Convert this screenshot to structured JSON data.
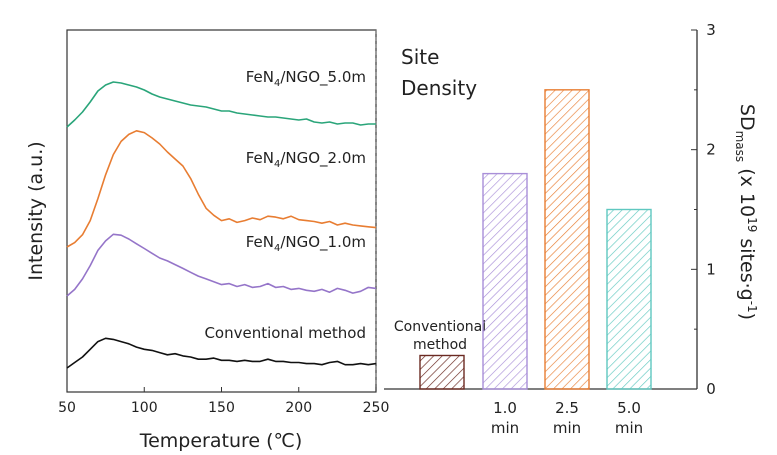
{
  "chart_data": [
    {
      "type": "line",
      "xlabel": "Temperature (℃)",
      "ylabel": "Intensity (a.u.)",
      "xlim": [
        50,
        250
      ],
      "xticks": [
        "50",
        "100",
        "150",
        "200",
        "250"
      ],
      "legend": "labels placed above each curve",
      "series": [
        {
          "name": "FeN4/NGO_5.0m",
          "label_parts": [
            "FeN",
            "4",
            "/NGO_5.0m"
          ],
          "color": "#2aa57a",
          "x": [
            50,
            55,
            60,
            65,
            70,
            75,
            80,
            85,
            90,
            95,
            100,
            105,
            110,
            115,
            120,
            125,
            130,
            135,
            140,
            145,
            150,
            155,
            160,
            165,
            170,
            175,
            180,
            185,
            190,
            195,
            200,
            205,
            210,
            215,
            220,
            225,
            230,
            235,
            240,
            245,
            250
          ],
          "y": [
            0.0,
            0.07,
            0.15,
            0.25,
            0.36,
            0.42,
            0.45,
            0.44,
            0.42,
            0.4,
            0.37,
            0.33,
            0.3,
            0.28,
            0.26,
            0.24,
            0.22,
            0.21,
            0.2,
            0.18,
            0.16,
            0.16,
            0.14,
            0.13,
            0.12,
            0.11,
            0.1,
            0.1,
            0.09,
            0.08,
            0.07,
            0.08,
            0.05,
            0.04,
            0.05,
            0.03,
            0.04,
            0.04,
            0.02,
            0.03,
            0.03
          ]
        },
        {
          "name": "FeN4/NGO_2.0m",
          "label_parts": [
            "FeN",
            "4",
            "/NGO_2.0m"
          ],
          "color": "#e87d32",
          "x": [
            50,
            55,
            60,
            65,
            70,
            75,
            80,
            85,
            90,
            95,
            100,
            105,
            110,
            115,
            120,
            125,
            130,
            135,
            140,
            145,
            150,
            155,
            160,
            165,
            170,
            175,
            180,
            185,
            190,
            195,
            200,
            205,
            210,
            215,
            220,
            225,
            230,
            235,
            240,
            245,
            250
          ],
          "y": [
            0.0,
            0.05,
            0.14,
            0.3,
            0.55,
            0.82,
            1.05,
            1.2,
            1.28,
            1.32,
            1.3,
            1.24,
            1.17,
            1.08,
            1.0,
            0.92,
            0.78,
            0.6,
            0.44,
            0.36,
            0.3,
            0.32,
            0.28,
            0.3,
            0.33,
            0.31,
            0.35,
            0.34,
            0.32,
            0.35,
            0.31,
            0.3,
            0.29,
            0.27,
            0.29,
            0.25,
            0.27,
            0.25,
            0.24,
            0.23,
            0.22
          ]
        },
        {
          "name": "FeN4/NGO_1.0m",
          "label_parts": [
            "FeN",
            "4",
            "/NGO_1.0m"
          ],
          "color": "#9575c9",
          "x": [
            50,
            55,
            60,
            65,
            70,
            75,
            80,
            85,
            90,
            95,
            100,
            105,
            110,
            115,
            120,
            125,
            130,
            135,
            140,
            145,
            150,
            155,
            160,
            165,
            170,
            175,
            180,
            185,
            190,
            195,
            200,
            205,
            210,
            215,
            220,
            225,
            230,
            235,
            240,
            245,
            250
          ],
          "y": [
            0.0,
            0.07,
            0.18,
            0.32,
            0.48,
            0.58,
            0.65,
            0.64,
            0.6,
            0.55,
            0.5,
            0.45,
            0.4,
            0.37,
            0.33,
            0.29,
            0.25,
            0.21,
            0.18,
            0.15,
            0.12,
            0.13,
            0.1,
            0.12,
            0.09,
            0.1,
            0.13,
            0.09,
            0.1,
            0.07,
            0.08,
            0.06,
            0.05,
            0.07,
            0.04,
            0.08,
            0.06,
            0.03,
            0.05,
            0.09,
            0.08
          ]
        },
        {
          "name": "Conventional method",
          "color": "#111111",
          "x": [
            50,
            55,
            60,
            65,
            70,
            75,
            80,
            85,
            90,
            95,
            100,
            105,
            110,
            115,
            120,
            125,
            130,
            135,
            140,
            145,
            150,
            155,
            160,
            165,
            170,
            175,
            180,
            185,
            190,
            195,
            200,
            205,
            210,
            215,
            220,
            225,
            230,
            235,
            240,
            245,
            250
          ],
          "y": [
            0.0,
            0.05,
            0.1,
            0.17,
            0.24,
            0.27,
            0.26,
            0.24,
            0.22,
            0.19,
            0.17,
            0.16,
            0.14,
            0.12,
            0.13,
            0.11,
            0.1,
            0.08,
            0.08,
            0.09,
            0.07,
            0.07,
            0.06,
            0.07,
            0.06,
            0.06,
            0.08,
            0.06,
            0.06,
            0.05,
            0.05,
            0.04,
            0.04,
            0.03,
            0.05,
            0.06,
            0.03,
            0.03,
            0.04,
            0.03,
            0.04
          ]
        }
      ]
    },
    {
      "type": "bar",
      "title_lines": [
        "Site",
        "Density"
      ],
      "ylabel_main": "SD",
      "ylabel_sub": "mass",
      "ylabel_rest": " (x 10",
      "ylabel_sup": "19",
      "ylabel_rest2": " sites·g",
      "ylabel_sup2": "-1",
      "ylabel_end": ")",
      "ylim": [
        0,
        3
      ],
      "yticks": [
        "0",
        "1",
        "2",
        "3"
      ],
      "categories": [
        {
          "lines": [
            "Conventional",
            "method"
          ],
          "value": 0.28,
          "color": "#6b2a22",
          "label_pos": "above"
        },
        {
          "lines": [
            "1.0",
            "min"
          ],
          "value": 1.8,
          "color": "#a98fd8",
          "label_pos": "below"
        },
        {
          "lines": [
            "2.5",
            "min"
          ],
          "value": 2.5,
          "color": "#e87d32",
          "label_pos": "below"
        },
        {
          "lines": [
            "5.0",
            "min"
          ],
          "value": 1.5,
          "color": "#5fc8c0",
          "label_pos": "below"
        }
      ]
    }
  ]
}
